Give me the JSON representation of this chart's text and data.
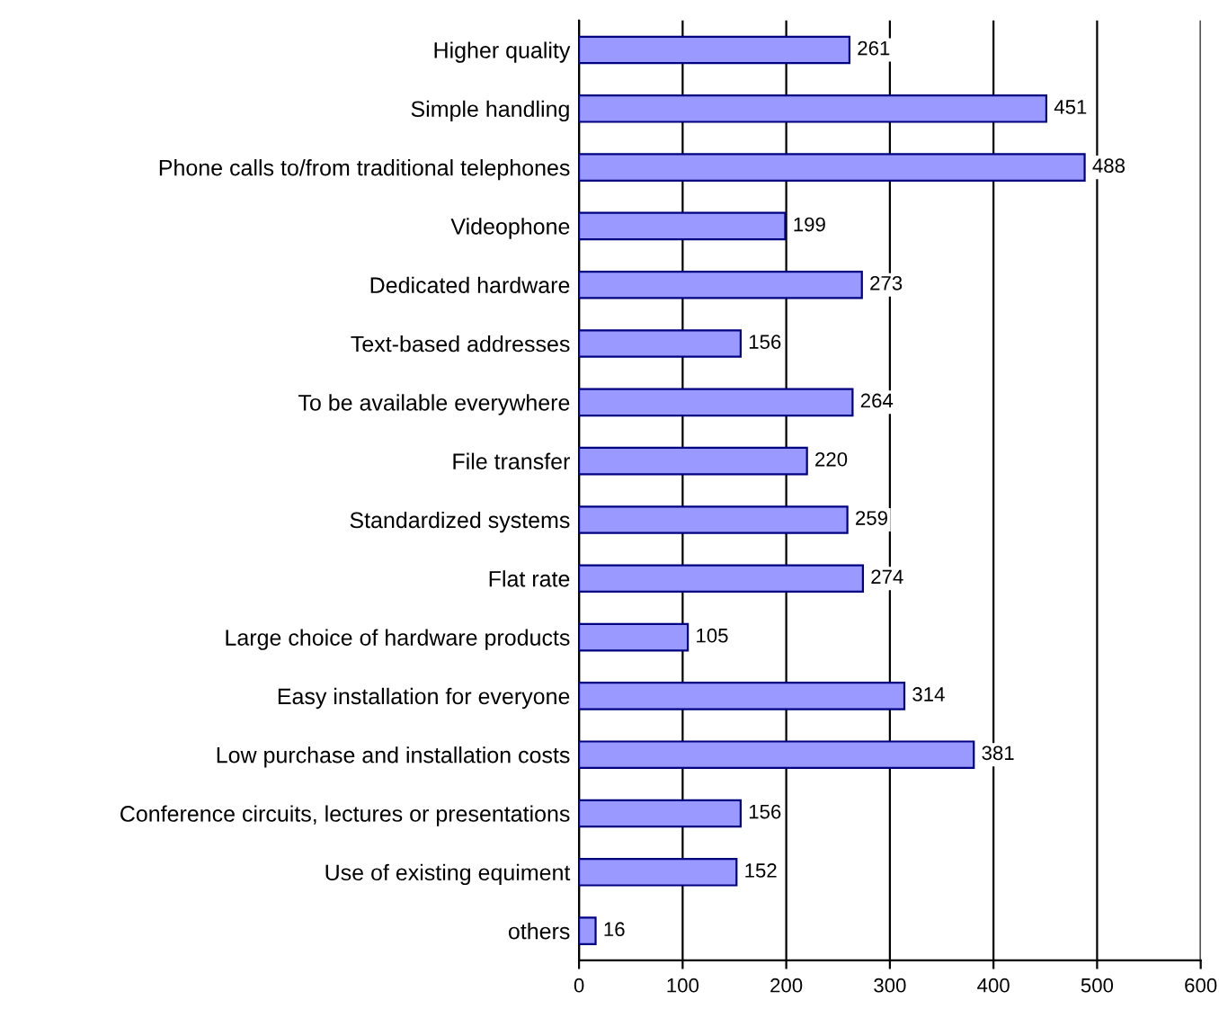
{
  "chart_data": {
    "type": "bar",
    "orientation": "horizontal",
    "categories": [
      "Higher quality",
      "Simple handling",
      "Phone calls to/from traditional telephones",
      "Videophone",
      "Dedicated hardware",
      "Text-based addresses",
      "To be available everywhere",
      "File transfer",
      "Standardized systems",
      "Flat rate",
      "Large choice of hardware products",
      "Easy installation for everyone",
      "Low purchase and installation costs",
      "Conference circuits, lectures or presentations",
      "Use of existing equiment",
      "others"
    ],
    "values": [
      261,
      451,
      488,
      199,
      273,
      156,
      264,
      220,
      259,
      274,
      105,
      314,
      381,
      156,
      152,
      16
    ],
    "color": "#9999ff",
    "xlim": [
      0,
      600
    ],
    "xticks": [
      0,
      100,
      200,
      300,
      400,
      500,
      600
    ],
    "grid": "x",
    "data_labels": true
  }
}
